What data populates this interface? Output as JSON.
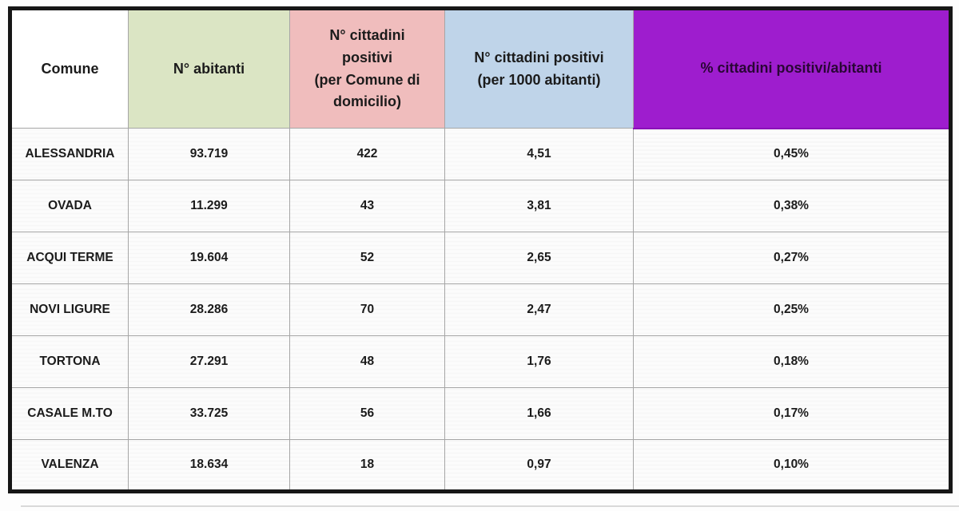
{
  "chart_data": {
    "type": "table",
    "columns": [
      "Comune",
      "N° abitanti",
      "N° cittadini positivi (per Comune di domicilio)",
      "N° cittadini positivi (per 1000 abitanti)",
      "% cittadini positivi/abitanti"
    ],
    "rows": [
      [
        "ALESSANDRIA",
        "93.719",
        "422",
        "4,51",
        "0,45%"
      ],
      [
        "OVADA",
        "11.299",
        "43",
        "3,81",
        "0,38%"
      ],
      [
        "ACQUI TERME",
        "19.604",
        "52",
        "2,65",
        "0,27%"
      ],
      [
        "NOVI LIGURE",
        "28.286",
        "70",
        "2,47",
        "0,25%"
      ],
      [
        "TORTONA",
        "27.291",
        "48",
        "1,76",
        "0,18%"
      ],
      [
        "CASALE M.TO",
        "33.725",
        "56",
        "1,66",
        "0,17%"
      ],
      [
        "VALENZA",
        "18.634",
        "18",
        "0,97",
        "0,10%"
      ]
    ]
  },
  "table": {
    "header": [
      {
        "label": "Comune",
        "bg": "#ffffff",
        "text": "#1b1b1b"
      },
      {
        "label": "N° abitanti",
        "bg": "#dbe5c4",
        "text": "#1b1b1b"
      },
      {
        "label": "N° cittadini\npositivi\n(per Comune di\ndomicilio)",
        "bg": "#f0bdbd",
        "text": "#1b1b1b"
      },
      {
        "label": "N° cittadini positivi\n(per 1000 abitanti)",
        "bg": "#bfd4e9",
        "text": "#1b1b1b"
      },
      {
        "label": "% cittadini positivi/abitanti",
        "bg": "#9e1dce",
        "text": "#2a0636"
      }
    ],
    "colors": {
      "outer_border": "#161616",
      "grid_line": "#a6a6a6",
      "purple_accent": "#9e1dce"
    }
  }
}
